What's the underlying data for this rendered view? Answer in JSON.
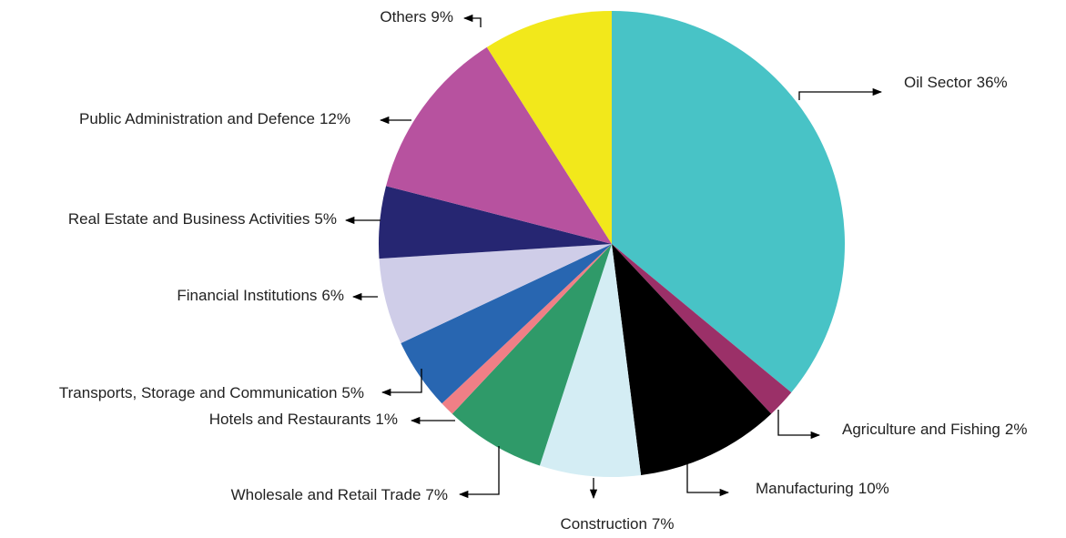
{
  "chart_data": {
    "type": "pie",
    "categories": [
      "Oil Sector",
      "Agriculture and Fishing",
      "Manufacturing",
      "Construction",
      "Wholesale and Retail Trade",
      "Hotels and Restaurants",
      "Transports, Storage and Communication",
      "Financial Institutions",
      "Real Estate and Business Activities",
      "Public Administration and Defence",
      "Others"
    ],
    "values": [
      36,
      2,
      10,
      7,
      7,
      1,
      5,
      6,
      5,
      12,
      9
    ],
    "value_labels": [
      "36%",
      "2%",
      "10%",
      "7%",
      "7%",
      "1%",
      "5%",
      "6%",
      "5%",
      "12%",
      "9%"
    ],
    "colors": [
      "#48c3c6",
      "#9b3068",
      "#000000",
      "#d4edf4",
      "#2f9a69",
      "#f07f86",
      "#2866b1",
      "#cfcde8",
      "#262672",
      "#b7529f",
      "#f2e81b"
    ]
  }
}
